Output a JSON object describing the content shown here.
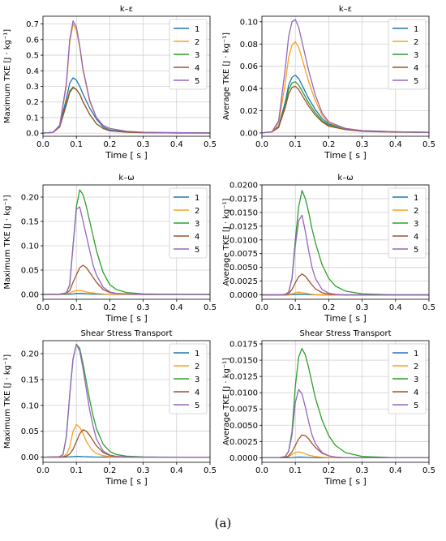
{
  "caption": "(a)",
  "series_colors": [
    "#1f77b4",
    "#ff9f1c",
    "#2ca02c",
    "#a0522d",
    "#9467bd"
  ],
  "chart_data": [
    {
      "type": "line",
      "title": "k–ε",
      "xlabel": "Time [ s ]",
      "ylabel": "Maximum TKE [J · kg⁻¹]",
      "xlim": [
        0,
        0.5
      ],
      "ylim": [
        -0.02,
        0.75
      ],
      "xticks": [
        0.0,
        0.1,
        0.2,
        0.3,
        0.4,
        0.5
      ],
      "yticks": [
        0.0,
        0.1,
        0.2,
        0.3,
        0.4,
        0.5,
        0.6,
        0.7
      ],
      "grid": true,
      "legend_position": "top-right",
      "x": [
        0,
        0.03,
        0.05,
        0.07,
        0.08,
        0.09,
        0.1,
        0.11,
        0.12,
        0.14,
        0.16,
        0.18,
        0.2,
        0.25,
        0.3,
        0.35,
        0.4,
        0.45,
        0.5
      ],
      "series": [
        {
          "name": "1",
          "values": [
            0,
            0.005,
            0.05,
            0.22,
            0.32,
            0.355,
            0.34,
            0.3,
            0.25,
            0.16,
            0.09,
            0.04,
            0.02,
            0.008,
            0.004,
            0.003,
            0.002,
            0.001,
            0.001
          ]
        },
        {
          "name": "2",
          "values": [
            0,
            0.005,
            0.05,
            0.3,
            0.58,
            0.7,
            0.66,
            0.55,
            0.4,
            0.2,
            0.1,
            0.05,
            0.03,
            0.012,
            0.006,
            0.004,
            0.003,
            0.002,
            0.001
          ]
        },
        {
          "name": "3",
          "values": [
            0,
            0.005,
            0.04,
            0.18,
            0.26,
            0.29,
            0.28,
            0.25,
            0.2,
            0.12,
            0.06,
            0.03,
            0.015,
            0.006,
            0.003,
            0.002,
            0.001,
            0.001,
            0.001
          ]
        },
        {
          "name": "4",
          "values": [
            0,
            0.005,
            0.04,
            0.19,
            0.27,
            0.295,
            0.28,
            0.25,
            0.2,
            0.12,
            0.06,
            0.03,
            0.015,
            0.006,
            0.003,
            0.002,
            0.001,
            0.001,
            0.001
          ]
        },
        {
          "name": "5",
          "values": [
            0,
            0.005,
            0.05,
            0.32,
            0.6,
            0.72,
            0.68,
            0.56,
            0.41,
            0.21,
            0.1,
            0.05,
            0.03,
            0.012,
            0.006,
            0.004,
            0.003,
            0.002,
            0.001
          ]
        }
      ]
    },
    {
      "type": "line",
      "title": "k–ε",
      "xlabel": "Time [ s ]",
      "ylabel": "Average TKE [J · kg⁻¹]",
      "xlim": [
        0,
        0.5
      ],
      "ylim": [
        -0.003,
        0.105
      ],
      "xticks": [
        0.0,
        0.1,
        0.2,
        0.3,
        0.4,
        0.5
      ],
      "yticks": [
        0.0,
        0.02,
        0.04,
        0.06,
        0.08,
        0.1
      ],
      "ytick_labels": [
        "0.00",
        "0.02",
        "0.04",
        "0.06",
        "0.08",
        "0.10"
      ],
      "grid": true,
      "legend_position": "top-right",
      "x": [
        0,
        0.03,
        0.05,
        0.07,
        0.08,
        0.09,
        0.1,
        0.11,
        0.12,
        0.14,
        0.16,
        0.18,
        0.2,
        0.25,
        0.3,
        0.35,
        0.4,
        0.45,
        0.5
      ],
      "series": [
        {
          "name": "1",
          "values": [
            0,
            0.001,
            0.006,
            0.028,
            0.043,
            0.05,
            0.052,
            0.049,
            0.043,
            0.031,
            0.021,
            0.013,
            0.008,
            0.004,
            0.002,
            0.0015,
            0.001,
            0.0008,
            0.0005
          ]
        },
        {
          "name": "2",
          "values": [
            0,
            0.001,
            0.009,
            0.045,
            0.068,
            0.079,
            0.082,
            0.077,
            0.067,
            0.046,
            0.029,
            0.016,
            0.009,
            0.004,
            0.002,
            0.0015,
            0.001,
            0.0008,
            0.0005
          ]
        },
        {
          "name": "3",
          "values": [
            0,
            0.001,
            0.005,
            0.025,
            0.039,
            0.045,
            0.046,
            0.043,
            0.038,
            0.027,
            0.018,
            0.011,
            0.007,
            0.003,
            0.002,
            0.0012,
            0.001,
            0.0007,
            0.0005
          ]
        },
        {
          "name": "4",
          "values": [
            0,
            0.001,
            0.005,
            0.023,
            0.035,
            0.041,
            0.042,
            0.039,
            0.034,
            0.024,
            0.016,
            0.01,
            0.006,
            0.003,
            0.0015,
            0.001,
            0.0008,
            0.0006,
            0.0004
          ]
        },
        {
          "name": "5",
          "values": [
            0,
            0.001,
            0.011,
            0.058,
            0.087,
            0.1,
            0.102,
            0.095,
            0.082,
            0.056,
            0.034,
            0.018,
            0.01,
            0.004,
            0.002,
            0.0015,
            0.001,
            0.0008,
            0.0005
          ]
        }
      ]
    },
    {
      "type": "line",
      "title": "k–ω",
      "xlabel": "Time [ s ]",
      "ylabel": "Maximum TKE [J · kg⁻¹]",
      "xlim": [
        0,
        0.5
      ],
      "ylim": [
        -0.01,
        0.225
      ],
      "xticks": [
        0.0,
        0.1,
        0.2,
        0.3,
        0.4,
        0.5
      ],
      "yticks": [
        0.0,
        0.05,
        0.1,
        0.15,
        0.2
      ],
      "ytick_labels": [
        "0.00",
        "0.05",
        "0.10",
        "0.15",
        "0.20"
      ],
      "grid": true,
      "legend_position": "top-right",
      "x": [
        0,
        0.05,
        0.07,
        0.08,
        0.09,
        0.1,
        0.11,
        0.12,
        0.13,
        0.14,
        0.15,
        0.16,
        0.18,
        0.2,
        0.22,
        0.25,
        0.3,
        0.35,
        0.4,
        0.5
      ],
      "series": [
        {
          "name": "1",
          "values": [
            0,
            0,
            0,
            0.0005,
            0.001,
            0.002,
            0.002,
            0.002,
            0.0015,
            0.001,
            0.0008,
            0.0005,
            0.0003,
            0.0002,
            0.0001,
            0,
            0,
            0,
            0,
            0
          ]
        },
        {
          "name": "2",
          "values": [
            0,
            0,
            0.001,
            0.003,
            0.006,
            0.008,
            0.008,
            0.007,
            0.005,
            0.004,
            0.003,
            0.002,
            0.001,
            0.0005,
            0.0003,
            0.0001,
            0,
            0,
            0,
            0
          ]
        },
        {
          "name": "3",
          "values": [
            0,
            0.0005,
            0.003,
            0.02,
            0.1,
            0.18,
            0.215,
            0.205,
            0.18,
            0.15,
            0.12,
            0.09,
            0.045,
            0.02,
            0.01,
            0.004,
            0.001,
            0.0005,
            0.0002,
            0
          ]
        },
        {
          "name": "4",
          "values": [
            0,
            0,
            0.002,
            0.008,
            0.025,
            0.04,
            0.055,
            0.06,
            0.055,
            0.045,
            0.035,
            0.025,
            0.01,
            0.004,
            0.002,
            0.001,
            0,
            0,
            0,
            0
          ]
        },
        {
          "name": "5",
          "values": [
            0,
            0.0005,
            0.003,
            0.02,
            0.1,
            0.175,
            0.18,
            0.15,
            0.12,
            0.09,
            0.06,
            0.04,
            0.015,
            0.005,
            0.002,
            0.001,
            0,
            0,
            0,
            0
          ]
        }
      ]
    },
    {
      "type": "line",
      "title": "k–ω",
      "xlabel": "Time [ s ]",
      "ylabel": "Average TKE [J · kg⁻¹]",
      "xlim": [
        0,
        0.5
      ],
      "ylim": [
        -0.0008,
        0.02
      ],
      "xticks": [
        0.0,
        0.1,
        0.2,
        0.3,
        0.4,
        0.5
      ],
      "yticks": [
        0.0,
        0.0025,
        0.005,
        0.0075,
        0.01,
        0.0125,
        0.015,
        0.0175,
        0.02
      ],
      "ytick_labels": [
        "0.0000",
        "0.0025",
        "0.0050",
        "0.0075",
        "0.0100",
        "0.0125",
        "0.0150",
        "0.0175",
        "0.0200"
      ],
      "grid": true,
      "legend_position": "top-right",
      "x": [
        0,
        0.05,
        0.07,
        0.08,
        0.09,
        0.1,
        0.11,
        0.12,
        0.13,
        0.14,
        0.15,
        0.16,
        0.18,
        0.2,
        0.22,
        0.25,
        0.3,
        0.35,
        0.4,
        0.5
      ],
      "series": [
        {
          "name": "1",
          "values": [
            0,
            0,
            0,
            0,
            5e-05,
            0.0001,
            0.00015,
            0.0001,
            0.0001,
            5e-05,
            3e-05,
            2e-05,
            0,
            0,
            0,
            0,
            0,
            0,
            0,
            0
          ]
        },
        {
          "name": "2",
          "values": [
            0,
            0,
            0,
            5e-05,
            0.0002,
            0.0004,
            0.0005,
            0.0004,
            0.0003,
            0.0002,
            0.0001,
            5e-05,
            2e-05,
            0,
            0,
            0,
            0,
            0,
            0,
            0
          ]
        },
        {
          "name": "3",
          "values": [
            0,
            0,
            0.0001,
            0.0005,
            0.003,
            0.01,
            0.016,
            0.019,
            0.0175,
            0.015,
            0.012,
            0.0095,
            0.0055,
            0.003,
            0.0016,
            0.0007,
            0.0002,
            0.0001,
            0,
            0
          ]
        },
        {
          "name": "4",
          "values": [
            0,
            0,
            0,
            0.0002,
            0.001,
            0.0022,
            0.0033,
            0.0038,
            0.0034,
            0.0026,
            0.0018,
            0.0011,
            0.0004,
            0.0001,
            5e-05,
            0,
            0,
            0,
            0,
            0
          ]
        },
        {
          "name": "5",
          "values": [
            0,
            0,
            0.0001,
            0.0005,
            0.003,
            0.009,
            0.0135,
            0.0145,
            0.0115,
            0.008,
            0.005,
            0.003,
            0.001,
            0.0003,
            0.0001,
            0,
            0,
            0,
            0,
            0
          ]
        }
      ]
    },
    {
      "type": "line",
      "title": "Shear Stress Transport",
      "xlabel": "Time [ s ]",
      "ylabel": "Maximum TKE [J · kg⁻¹]",
      "xlim": [
        0,
        0.5
      ],
      "ylim": [
        -0.01,
        0.225
      ],
      "xticks": [
        0.0,
        0.1,
        0.2,
        0.3,
        0.4,
        0.5
      ],
      "yticks": [
        0.0,
        0.05,
        0.1,
        0.15,
        0.2
      ],
      "ytick_labels": [
        "0.00",
        "0.05",
        "0.10",
        "0.15",
        "0.20"
      ],
      "grid": true,
      "legend_position": "top-right",
      "x": [
        0,
        0.05,
        0.06,
        0.07,
        0.08,
        0.09,
        0.1,
        0.11,
        0.12,
        0.13,
        0.14,
        0.15,
        0.16,
        0.18,
        0.2,
        0.22,
        0.25,
        0.3,
        0.35,
        0.4,
        0.5
      ],
      "series": [
        {
          "name": "1",
          "values": [
            0,
            0,
            0,
            0.0002,
            0.0005,
            0.001,
            0.0015,
            0.0015,
            0.001,
            0.0008,
            0.0005,
            0.0003,
            0.0002,
            0.0001,
            0,
            0,
            0,
            0,
            0,
            0,
            0
          ]
        },
        {
          "name": "2",
          "values": [
            0,
            0,
            0.001,
            0.005,
            0.02,
            0.05,
            0.063,
            0.058,
            0.045,
            0.03,
            0.02,
            0.012,
            0.007,
            0.003,
            0.001,
            0.0005,
            0,
            0,
            0,
            0,
            0
          ]
        },
        {
          "name": "3",
          "values": [
            0,
            0.001,
            0.005,
            0.04,
            0.12,
            0.19,
            0.218,
            0.21,
            0.18,
            0.145,
            0.11,
            0.08,
            0.055,
            0.025,
            0.011,
            0.005,
            0.002,
            0.0005,
            0.0002,
            0,
            0
          ]
        },
        {
          "name": "4",
          "values": [
            0,
            0,
            0.0005,
            0.002,
            0.006,
            0.015,
            0.03,
            0.045,
            0.053,
            0.05,
            0.042,
            0.032,
            0.022,
            0.009,
            0.003,
            0.001,
            0.0003,
            0,
            0,
            0,
            0
          ]
        },
        {
          "name": "5",
          "values": [
            0,
            0.001,
            0.005,
            0.04,
            0.12,
            0.19,
            0.218,
            0.205,
            0.17,
            0.13,
            0.09,
            0.06,
            0.035,
            0.012,
            0.004,
            0.0015,
            0.0005,
            0,
            0,
            0,
            0
          ]
        }
      ]
    },
    {
      "type": "line",
      "title": "Shear Stress Transport",
      "xlabel": "Time [ s ]",
      "ylabel": "Average TKE [J · kg⁻¹]",
      "xlim": [
        0,
        0.5
      ],
      "ylim": [
        -0.0007,
        0.018
      ],
      "xticks": [
        0.0,
        0.1,
        0.2,
        0.3,
        0.4,
        0.5
      ],
      "yticks": [
        0.0,
        0.0025,
        0.005,
        0.0075,
        0.01,
        0.0125,
        0.015,
        0.0175
      ],
      "ytick_labels": [
        "0.0000",
        "0.0025",
        "0.0050",
        "0.0075",
        "0.0100",
        "0.0125",
        "0.0150",
        "0.0175"
      ],
      "grid": true,
      "legend_position": "top-right",
      "x": [
        0,
        0.05,
        0.07,
        0.08,
        0.09,
        0.1,
        0.11,
        0.12,
        0.13,
        0.14,
        0.15,
        0.16,
        0.18,
        0.2,
        0.22,
        0.25,
        0.3,
        0.35,
        0.4,
        0.5
      ],
      "series": [
        {
          "name": "1",
          "values": [
            0,
            0,
            0,
            0,
            3e-05,
            8e-05,
            0.0001,
            0.0001,
            8e-05,
            5e-05,
            3e-05,
            2e-05,
            0,
            0,
            0,
            0,
            0,
            0,
            0,
            0
          ]
        },
        {
          "name": "2",
          "values": [
            0,
            0,
            5e-05,
            0.0002,
            0.0005,
            0.0008,
            0.0009,
            0.0008,
            0.0006,
            0.0004,
            0.0003,
            0.0002,
            8e-05,
            3e-05,
            0,
            0,
            0,
            0,
            0,
            0
          ]
        },
        {
          "name": "3",
          "values": [
            0,
            0,
            0.0002,
            0.001,
            0.004,
            0.011,
            0.0155,
            0.0168,
            0.0158,
            0.0138,
            0.0115,
            0.0092,
            0.0058,
            0.0034,
            0.0019,
            0.0008,
            0.0002,
            0.0001,
            0,
            0
          ]
        },
        {
          "name": "4",
          "values": [
            0,
            0,
            5e-05,
            0.0003,
            0.0009,
            0.0019,
            0.0029,
            0.0035,
            0.0034,
            0.0029,
            0.0022,
            0.0016,
            0.0007,
            0.0003,
            0.0001,
            0,
            0,
            0,
            0,
            0
          ]
        },
        {
          "name": "5",
          "values": [
            0,
            0,
            0.0002,
            0.001,
            0.0035,
            0.0085,
            0.0105,
            0.0098,
            0.0078,
            0.0055,
            0.0035,
            0.0022,
            0.0008,
            0.0003,
            0.0001,
            0,
            0,
            0,
            0,
            0
          ]
        }
      ]
    }
  ]
}
